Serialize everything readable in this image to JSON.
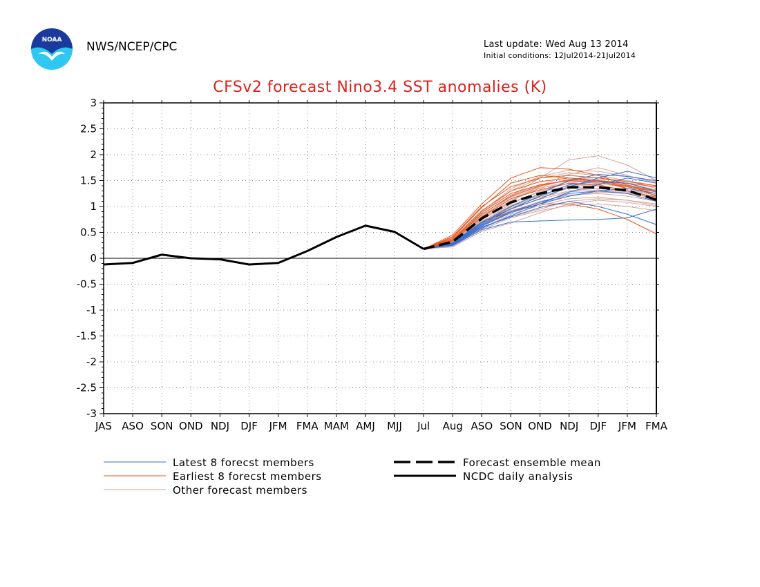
{
  "header": {
    "org": "NWS/NCEP/CPC",
    "last_update": "Last update: Wed Aug 13 2014",
    "initial_conditions": "Initial conditions: 12Jul2014-21Jul2014",
    "logo_text": "NOAA"
  },
  "colors": {
    "title": "#e0201b",
    "latest": "#2f6fd6",
    "earliest": "#e8541a",
    "other": "#d6a39a",
    "analysis": "#000000"
  },
  "chart_data": {
    "type": "line",
    "title": "CFSv2 forecast Nino3.4 SST anomalies (K)",
    "categories": [
      "JAS",
      "ASO",
      "SON",
      "OND",
      "NDJ",
      "DJF",
      "JFM",
      "FMA",
      "MAM",
      "AMJ",
      "MJJ",
      "Jul",
      "Aug",
      "ASO",
      "SON",
      "OND",
      "NDJ",
      "DJF",
      "JFM",
      "FMA"
    ],
    "ylim": [
      -3,
      3
    ],
    "yticks": [
      -3,
      -2.5,
      -2,
      -1.5,
      -1,
      -0.5,
      0,
      0.5,
      1,
      1.5,
      2,
      2.5,
      3
    ],
    "ytick_labels": [
      "-3",
      "-2.5",
      "-2",
      "-1.5",
      "-1",
      "-0.5",
      "0",
      "0.5",
      "1",
      "1.5",
      "2",
      "2.5",
      "3"
    ],
    "grid": "dotted",
    "zero_line": true,
    "analysis": {
      "name": "NCDC daily analysis",
      "x_start": 0,
      "values": [
        -0.12,
        -0.09,
        0.07,
        0.0,
        -0.02,
        -0.12,
        -0.09,
        0.14,
        0.41,
        0.63,
        0.51,
        0.18
      ]
    },
    "ensemble_mean": {
      "name": "Forecast ensemble mean",
      "x_start": 11,
      "values": [
        0.18,
        0.32,
        0.77,
        1.08,
        1.25,
        1.37,
        1.37,
        1.31,
        1.13
      ]
    },
    "member_groups": [
      {
        "name": "Latest 8 forecst members",
        "color": "#2f6fd6",
        "x_start": 11,
        "members": [
          [
            0.18,
            0.28,
            0.62,
            0.88,
            1.05,
            1.28,
            1.42,
            1.55,
            1.45
          ],
          [
            0.18,
            0.3,
            0.7,
            0.95,
            1.15,
            1.38,
            1.55,
            1.68,
            1.55
          ],
          [
            0.18,
            0.25,
            0.55,
            0.7,
            0.72,
            0.74,
            0.75,
            0.78,
            0.95
          ],
          [
            0.18,
            0.27,
            0.6,
            0.8,
            0.98,
            1.1,
            1.0,
            0.85,
            0.65
          ],
          [
            0.18,
            0.3,
            0.68,
            1.0,
            1.25,
            1.5,
            1.62,
            1.58,
            1.5
          ],
          [
            0.18,
            0.26,
            0.58,
            0.82,
            1.05,
            1.2,
            1.3,
            1.35,
            1.25
          ],
          [
            0.18,
            0.28,
            0.64,
            0.9,
            1.08,
            1.25,
            1.3,
            1.25,
            1.1
          ],
          [
            0.18,
            0.29,
            0.66,
            0.95,
            1.2,
            1.42,
            1.48,
            1.45,
            1.3
          ]
        ]
      },
      {
        "name": "Earliest 8 forecst members",
        "color": "#e8541a",
        "x_start": 11,
        "members": [
          [
            0.18,
            0.45,
            1.05,
            1.55,
            1.75,
            1.72,
            1.6,
            1.42,
            1.2
          ],
          [
            0.18,
            0.4,
            0.98,
            1.45,
            1.6,
            1.55,
            1.5,
            1.4,
            1.3
          ],
          [
            0.18,
            0.35,
            0.85,
            1.2,
            1.4,
            1.52,
            1.5,
            1.45,
            1.38
          ],
          [
            0.18,
            0.3,
            0.7,
            0.9,
            1.05,
            1.05,
            0.95,
            0.75,
            0.47
          ],
          [
            0.18,
            0.42,
            1.0,
            1.38,
            1.55,
            1.6,
            1.55,
            1.48,
            1.4
          ],
          [
            0.18,
            0.38,
            0.92,
            1.3,
            1.48,
            1.55,
            1.5,
            1.35,
            1.25
          ],
          [
            0.18,
            0.33,
            0.8,
            1.15,
            1.32,
            1.45,
            1.42,
            1.3,
            1.18
          ],
          [
            0.18,
            0.36,
            0.88,
            1.25,
            1.42,
            1.5,
            1.48,
            1.38,
            1.28
          ]
        ]
      },
      {
        "name": "Other forecast members",
        "color": "#d6a39a",
        "x_start": 11,
        "members": [
          [
            0.18,
            0.3,
            0.75,
            1.1,
            1.4,
            1.62,
            1.75,
            1.6,
            1.45
          ],
          [
            0.18,
            0.28,
            0.7,
            1.05,
            1.3,
            1.45,
            1.52,
            1.5,
            1.35
          ],
          [
            0.18,
            0.32,
            0.8,
            1.2,
            1.55,
            1.9,
            1.98,
            1.8,
            1.5
          ],
          [
            0.18,
            0.25,
            0.6,
            0.8,
            0.95,
            1.1,
            1.15,
            1.12,
            1.05
          ],
          [
            0.18,
            0.26,
            0.65,
            0.92,
            1.08,
            1.2,
            1.28,
            1.25,
            1.2
          ],
          [
            0.18,
            0.35,
            0.88,
            1.3,
            1.55,
            1.65,
            1.6,
            1.5,
            1.4
          ],
          [
            0.18,
            0.22,
            0.52,
            0.68,
            0.88,
            1.05,
            1.12,
            1.08,
            1.0
          ],
          [
            0.18,
            0.3,
            0.72,
            1.0,
            1.2,
            1.35,
            1.4,
            1.3,
            1.15
          ],
          [
            0.18,
            0.28,
            0.68,
            0.98,
            1.18,
            1.3,
            1.35,
            1.28,
            1.18
          ],
          [
            0.18,
            0.34,
            0.84,
            1.22,
            1.42,
            1.5,
            1.46,
            1.35,
            1.22
          ],
          [
            0.18,
            0.26,
            0.62,
            0.9,
            1.1,
            1.22,
            1.25,
            1.2,
            1.1
          ],
          [
            0.18,
            0.31,
            0.76,
            1.12,
            1.35,
            1.48,
            1.5,
            1.42,
            1.3
          ],
          [
            0.18,
            0.24,
            0.58,
            0.85,
            1.02,
            1.15,
            1.18,
            1.12,
            1.02
          ],
          [
            0.18,
            0.33,
            0.82,
            1.18,
            1.38,
            1.52,
            1.56,
            1.45,
            1.32
          ],
          [
            0.18,
            0.29,
            0.7,
            1.02,
            1.22,
            1.38,
            1.44,
            1.4,
            1.28
          ],
          [
            0.18,
            0.27,
            0.66,
            0.96,
            1.14,
            1.28,
            1.32,
            1.26,
            1.15
          ],
          [
            0.18,
            0.36,
            0.9,
            1.34,
            1.58,
            1.7,
            1.68,
            1.58,
            1.48
          ],
          [
            0.18,
            0.23,
            0.56,
            0.78,
            0.92,
            1.02,
            1.05,
            1.0,
            0.92
          ],
          [
            0.18,
            0.32,
            0.78,
            1.15,
            1.36,
            1.44,
            1.4,
            1.32,
            1.22
          ],
          [
            0.18,
            0.3,
            0.74,
            1.08,
            1.28,
            1.4,
            1.45,
            1.38,
            1.25
          ]
        ]
      }
    ],
    "legend": [
      {
        "label": "Latest 8 forecst members",
        "style": "thin",
        "color": "#2f6fd6"
      },
      {
        "label": "Earliest 8 forecst members",
        "style": "thin",
        "color": "#e8541a"
      },
      {
        "label": "Other forecast members",
        "style": "thin",
        "color": "#d6a39a"
      },
      {
        "label": "Forecast ensemble mean",
        "style": "dashed",
        "color": "#000000"
      },
      {
        "label": "NCDC daily analysis",
        "style": "solid",
        "color": "#000000"
      }
    ]
  }
}
